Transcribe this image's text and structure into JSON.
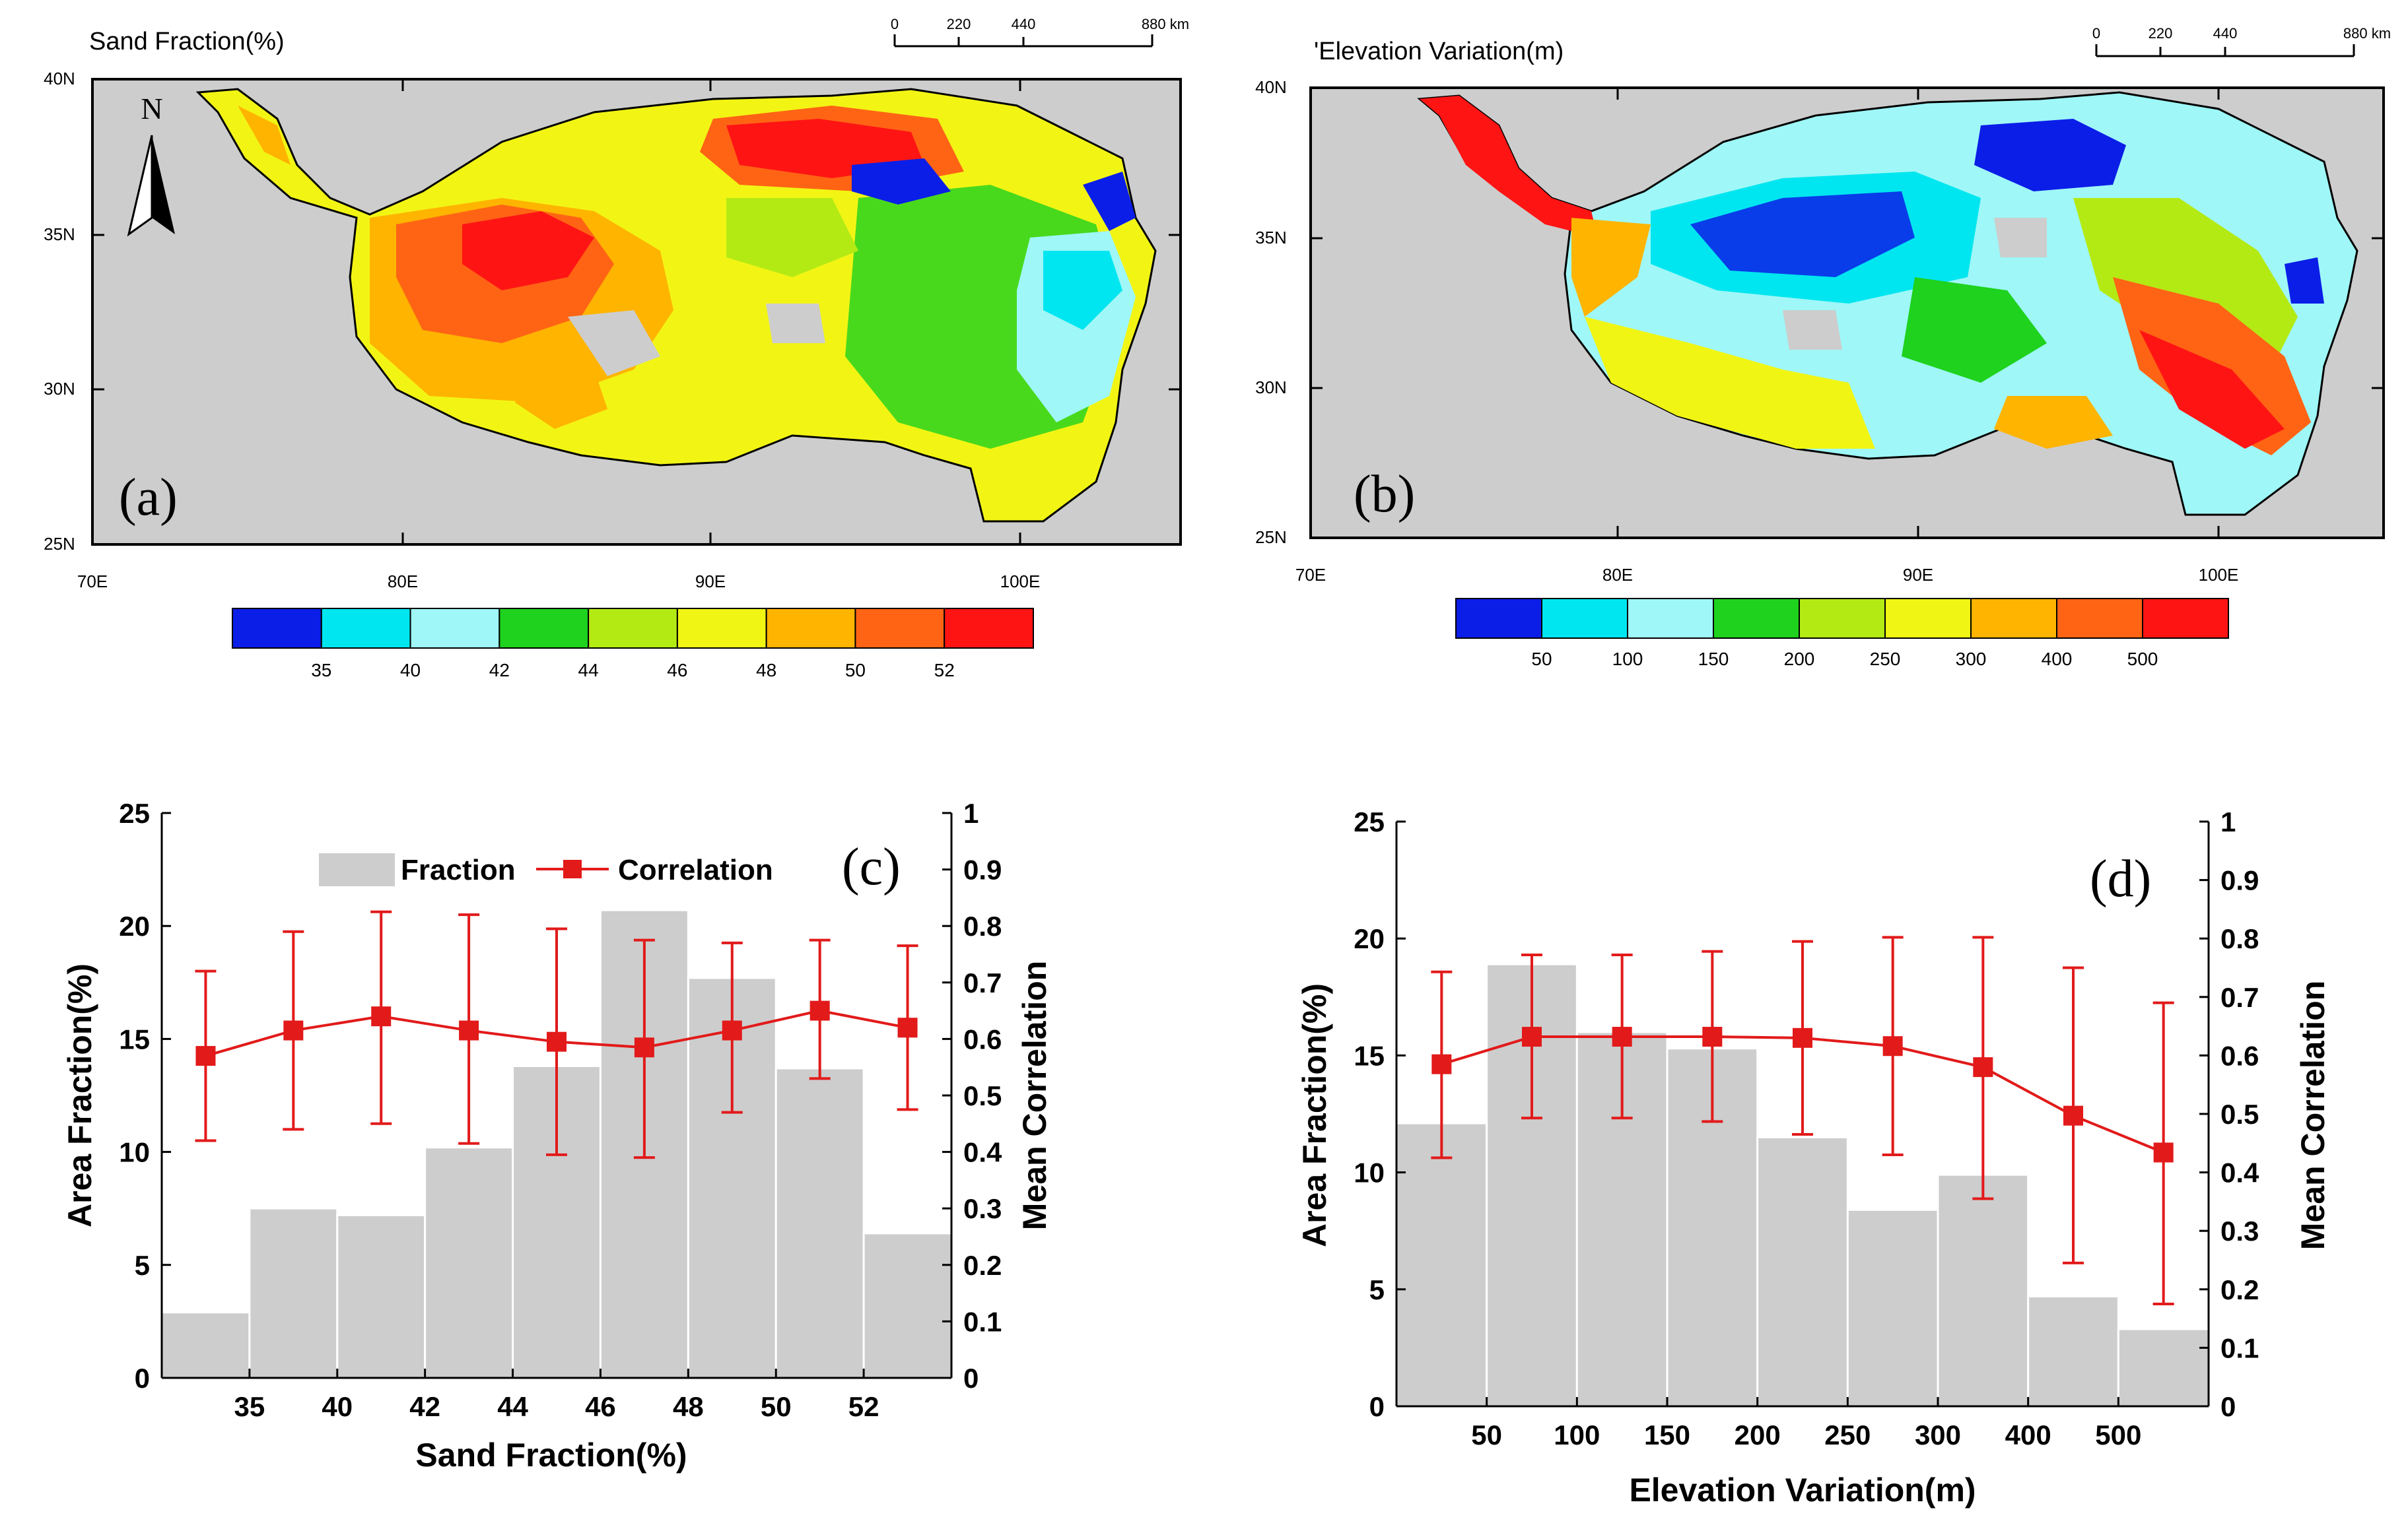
{
  "maps": [
    {
      "id": "a",
      "panel_label": "(a)",
      "title": "Sand Fraction(%)",
      "scale_bar": {
        "ticks": [
          "0",
          "220",
          "440",
          "880 km"
        ]
      },
      "north_label": "N",
      "lat_labels": [
        "40N",
        "35N",
        "30N",
        "25N"
      ],
      "lon_labels": [
        "70E",
        "80E",
        "90E",
        "100E"
      ],
      "colorbar": {
        "colors": [
          "#0a1ee8",
          "#00e6f0",
          "#9ff7f7",
          "#1ed21e",
          "#b4ea14",
          "#f0f514",
          "#ffb400",
          "#ff6414",
          "#ff1414"
        ],
        "labels": [
          "35",
          "40",
          "42",
          "44",
          "46",
          "48",
          "50",
          "52"
        ]
      }
    },
    {
      "id": "b",
      "panel_label": "(b)",
      "title": "'Elevation Variation(m)",
      "scale_bar": {
        "ticks": [
          "0",
          "220",
          "440",
          "880 km"
        ]
      },
      "lat_labels": [
        "40N",
        "35N",
        "30N",
        "25N"
      ],
      "lon_labels": [
        "70E",
        "80E",
        "90E",
        "100E"
      ],
      "colorbar": {
        "colors": [
          "#0a1ee8",
          "#00e6f0",
          "#9ff7f7",
          "#1ed21e",
          "#b4ea14",
          "#f0f514",
          "#ffb400",
          "#ff6414",
          "#ff1414"
        ],
        "labels": [
          "50",
          "100",
          "150",
          "200",
          "250",
          "300",
          "400",
          "500"
        ]
      }
    }
  ],
  "chart_data": [
    {
      "type": "bar",
      "panel_label": "(c)",
      "xlabel": "Sand Fraction(%)",
      "ylabel": "Area Fraction(%)",
      "y2label": "Mean Correlation",
      "x_tick_labels": [
        "35",
        "40",
        "42",
        "44",
        "46",
        "48",
        "50",
        "52"
      ],
      "ylim": [
        0,
        25
      ],
      "y_ticks": [
        0,
        5,
        10,
        15,
        20,
        25
      ],
      "y2lim": [
        0,
        1
      ],
      "y2_ticks": [
        "0",
        "0.1",
        "0.2",
        "0.3",
        "0.4",
        "0.5",
        "0.6",
        "0.7",
        "0.8",
        "0.9",
        "1"
      ],
      "legend": {
        "position": "top",
        "fraction_label": "Fraction",
        "correlation_label": "Correlation"
      },
      "series": [
        {
          "name": "Fraction",
          "values": [
            2.9,
            7.5,
            7.2,
            10.2,
            13.8,
            20.7,
            17.7,
            13.7,
            6.4
          ]
        },
        {
          "name": "Correlation",
          "values": [
            0.57,
            0.615,
            0.64,
            0.615,
            0.595,
            0.585,
            0.615,
            0.65,
            0.62
          ],
          "err_low": [
            0.42,
            0.44,
            0.45,
            0.415,
            0.395,
            0.39,
            0.47,
            0.53,
            0.475
          ],
          "err_high": [
            0.72,
            0.79,
            0.825,
            0.82,
            0.795,
            0.775,
            0.77,
            0.775,
            0.765
          ]
        }
      ]
    },
    {
      "type": "bar",
      "panel_label": "(d)",
      "xlabel": "Elevation Variation(m)",
      "ylabel": "Area Fraction(%)",
      "y2label": "Mean Correlation",
      "x_tick_labels": [
        "50",
        "100",
        "150",
        "200",
        "250",
        "300",
        "400",
        "500"
      ],
      "ylim": [
        0,
        25
      ],
      "y_ticks": [
        0,
        5,
        10,
        15,
        20,
        25
      ],
      "y2lim": [
        0,
        1
      ],
      "y2_ticks": [
        "0",
        "0.1",
        "0.2",
        "0.3",
        "0.4",
        "0.5",
        "0.6",
        "0.7",
        "0.8",
        "0.9",
        "1"
      ],
      "series": [
        {
          "name": "Fraction",
          "values": [
            12.1,
            18.9,
            16.0,
            15.3,
            11.5,
            8.4,
            9.9,
            4.7,
            3.3
          ]
        },
        {
          "name": "Correlation",
          "values": [
            0.585,
            0.632,
            0.632,
            0.632,
            0.63,
            0.616,
            0.58,
            0.497,
            0.434
          ],
          "err_low": [
            0.425,
            0.493,
            0.493,
            0.487,
            0.465,
            0.43,
            0.355,
            0.245,
            0.175
          ],
          "err_high": [
            0.743,
            0.772,
            0.772,
            0.778,
            0.795,
            0.802,
            0.802,
            0.75,
            0.69
          ]
        }
      ]
    }
  ]
}
